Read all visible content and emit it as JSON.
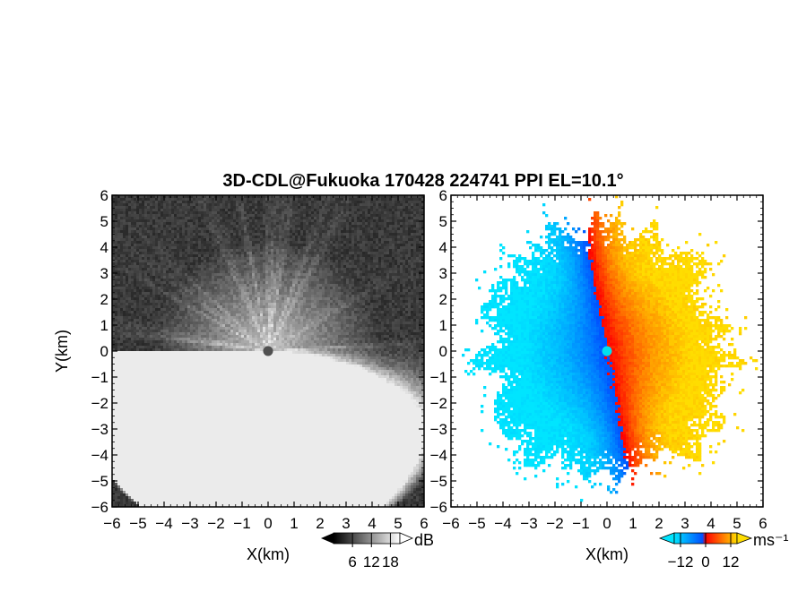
{
  "chart_data": [
    {
      "type": "heatmap",
      "panel": "left",
      "title": "3D-CDL@Fukuoka 170428 224741 PPI EL=10.1°",
      "xlabel": "X(km)",
      "ylabel": "Y(km)",
      "xlim": [
        -6,
        6
      ],
      "ylim": [
        -6,
        6
      ],
      "xticks": [
        "−6",
        "−5",
        "−4",
        "−3",
        "−2",
        "−1",
        "0",
        "1",
        "2",
        "3",
        "4",
        "5",
        "6"
      ],
      "yticks": [
        "6",
        "5",
        "4",
        "3",
        "2",
        "1",
        "0",
        "−1",
        "−2",
        "−3",
        "−4",
        "−5",
        "−6"
      ],
      "colorbar": {
        "unit": "dB",
        "ticks": [
          "6",
          "12",
          "18"
        ],
        "range": [
          0,
          21
        ],
        "colormap": "grayscale"
      },
      "center_marker": {
        "x": 0,
        "y": 0,
        "color": "#505050"
      }
    },
    {
      "type": "heatmap",
      "panel": "right",
      "xlabel": "X(km)",
      "xlim": [
        -6,
        6
      ],
      "ylim": [
        -6,
        6
      ],
      "xticks": [
        "−6",
        "−5",
        "−4",
        "−3",
        "−2",
        "−1",
        "0",
        "1",
        "2",
        "3",
        "4",
        "5",
        "6"
      ],
      "yticks": [
        "6",
        "5",
        "4",
        "3",
        "2",
        "1",
        "0",
        "−1",
        "−2",
        "−3",
        "−4",
        "−5",
        "−6"
      ],
      "colorbar": {
        "unit": "ms⁻¹",
        "ticks": [
          "−12",
          "0",
          "12"
        ],
        "range": [
          -15,
          15
        ],
        "colormap": [
          "#00e5ff",
          "#0050ff",
          "#ff0000",
          "#ffdd00"
        ]
      },
      "center_marker": {
        "x": 0,
        "y": 0,
        "color": "#00e0f0"
      }
    }
  ]
}
